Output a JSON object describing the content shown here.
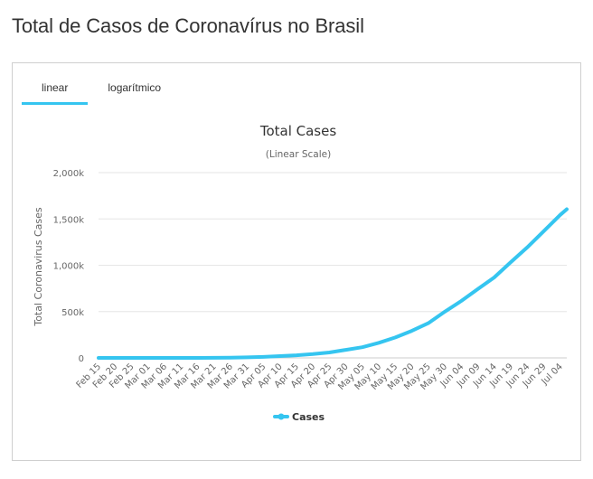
{
  "page": {
    "title": "Total de Casos de Coronavírus no Brasil"
  },
  "tabs": [
    {
      "label": "linear",
      "active": true
    },
    {
      "label": "logarítmico",
      "active": false
    }
  ],
  "colors": {
    "accent": "#35c5f0",
    "grid": "#e6e6e6",
    "text": "#333333",
    "axisText": "#666666"
  },
  "chart_data": {
    "type": "line",
    "title": "Total Cases",
    "subtitle": "(Linear Scale)",
    "ylabel": "Total Coronavirus Cases",
    "xlabel": "",
    "ylim": [
      0,
      2000000
    ],
    "yticks": [
      0,
      500000,
      1000000,
      1500000,
      2000000
    ],
    "ytick_labels": [
      "0",
      "500k",
      "1,000k",
      "1,500k",
      "2,000k"
    ],
    "x_tick_labels": [
      "Feb 15",
      "Feb 20",
      "Feb 25",
      "Mar 01",
      "Mar 06",
      "Mar 11",
      "Mar 16",
      "Mar 21",
      "Mar 26",
      "Mar 31",
      "Apr 05",
      "Apr 10",
      "Apr 15",
      "Apr 20",
      "Apr 25",
      "Apr 30",
      "May 05",
      "May 10",
      "May 15",
      "May 20",
      "May 25",
      "May 30",
      "Jun 04",
      "Jun 09",
      "Jun 14",
      "Jun 19",
      "Jun 24",
      "Jun 29",
      "Jul 04"
    ],
    "legend": {
      "position": "bottom-center"
    },
    "grid": true,
    "series": [
      {
        "name": "Cases",
        "color": "#35c5f0",
        "points": [
          [
            "Feb 15",
            0
          ],
          [
            "Feb 20",
            0
          ],
          [
            "Feb 25",
            0
          ],
          [
            "Mar 01",
            2
          ],
          [
            "Mar 06",
            13
          ],
          [
            "Mar 11",
            52
          ],
          [
            "Mar 16",
            234
          ],
          [
            "Mar 21",
            1128
          ],
          [
            "Mar 26",
            2985
          ],
          [
            "Mar 31",
            5812
          ],
          [
            "Apr 05",
            11130
          ],
          [
            "Apr 10",
            19789
          ],
          [
            "Apr 15",
            28320
          ],
          [
            "Apr 20",
            40743
          ],
          [
            "Apr 25",
            58509
          ],
          [
            "Apr 30",
            87187
          ],
          [
            "May 05",
            115455
          ],
          [
            "May 10",
            162699
          ],
          [
            "May 15",
            220291
          ],
          [
            "May 20",
            291579
          ],
          [
            "May 25",
            374898
          ],
          [
            "May 30",
            498440
          ],
          [
            "Jun 04",
            614941
          ],
          [
            "Jun 09",
            742084
          ],
          [
            "Jun 14",
            867882
          ],
          [
            "Jun 19",
            1032913
          ],
          [
            "Jun 24",
            1192474
          ],
          [
            "Jun 29",
            1368195
          ],
          [
            "Jul 04",
            1543341
          ],
          [
            "Jul 06",
            1604585
          ]
        ]
      }
    ]
  }
}
